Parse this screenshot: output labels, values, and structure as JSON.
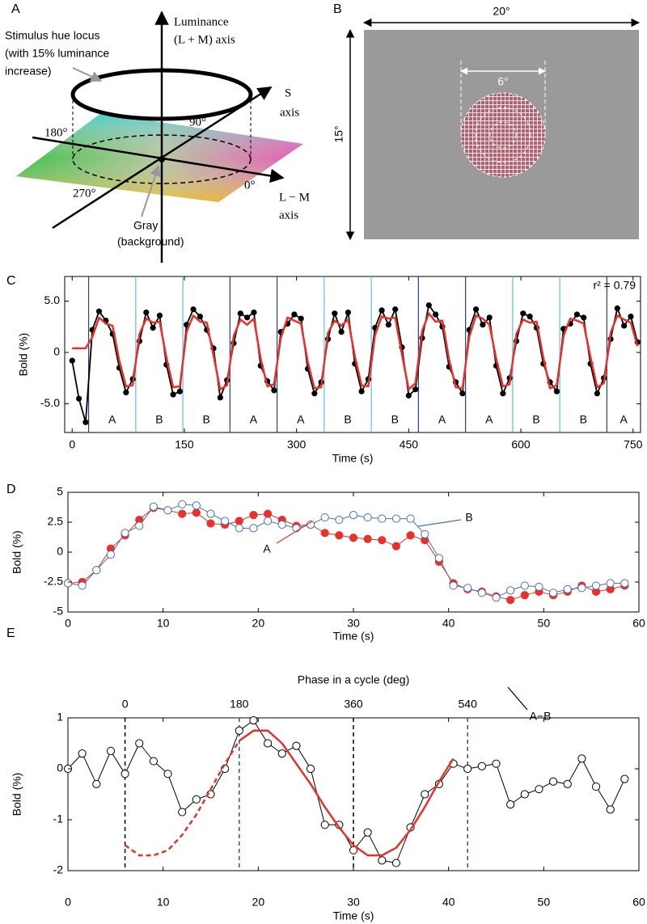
{
  "diagram_a": {
    "label": "A",
    "luminance_axis": [
      "Luminance",
      "(L + M) axis"
    ],
    "hue_locus": [
      "Stimulus hue locus",
      "(with 15% luminance",
      "increase)"
    ],
    "s_axis": [
      "S",
      "axis"
    ],
    "angles": [
      "180°",
      "90°",
      "270°",
      "0°"
    ],
    "lm_axis": [
      "L − M",
      "axis"
    ],
    "gray": [
      "Gray",
      "(background)"
    ]
  },
  "diagram_b": {
    "label": "B",
    "width": "20°",
    "height": "15°",
    "patch": "6°"
  },
  "chart_data": [
    {
      "type": "line",
      "label": "C",
      "xlabel": "Time (s)",
      "ylabel": "Bold (%)",
      "annotation": "r² = 0.79",
      "xlim": [
        -10,
        760
      ],
      "xticks": [
        0,
        150,
        300,
        450,
        600,
        750
      ],
      "ylim": [
        -7.8,
        7.4
      ],
      "yticks": [
        {
          "value": -5,
          "label": "-5.0"
        },
        0,
        {
          "value": 5,
          "label": "5.0"
        }
      ],
      "x": [
        0,
        9,
        18,
        27,
        36,
        45,
        54,
        63,
        72,
        81,
        90,
        99,
        108,
        117,
        126,
        135,
        144,
        153,
        162,
        171,
        180,
        189,
        198,
        207,
        216,
        225,
        234,
        243,
        252,
        261,
        270,
        279,
        288,
        297,
        306,
        315,
        324,
        333,
        342,
        351,
        360,
        369,
        378,
        387,
        396,
        405,
        414,
        423,
        432,
        441,
        450,
        459,
        468,
        477,
        486,
        495,
        504,
        513,
        522,
        531,
        540,
        549,
        558,
        567,
        576,
        585,
        594,
        603,
        612,
        621,
        630,
        639,
        648,
        657,
        666,
        675,
        684,
        693,
        702,
        711,
        720,
        729,
        738,
        747,
        756
      ],
      "series": [
        {
          "color": "#000000",
          "marker": "dot",
          "values": [
            -0.8,
            -4.5,
            -6.8,
            2.2,
            4.0,
            3.1,
            1.8,
            -1.5,
            -3.9,
            -2.6,
            1.1,
            3.9,
            2.4,
            3.6,
            -1.2,
            -4.1,
            -3.8,
            2.7,
            4.2,
            3.5,
            2.2,
            0.4,
            -4.4,
            -2.7,
            0.9,
            3.8,
            3.4,
            3.9,
            -1.3,
            -2.8,
            -3.7,
            2.0,
            2.8,
            3.7,
            3.3,
            -1.6,
            -4.0,
            -2.9,
            1.3,
            3.8,
            2.0,
            3.9,
            -1.1,
            -3.8,
            -2.6,
            2.4,
            4.1,
            2.7,
            4.2,
            0.5,
            -4.2,
            -3.6,
            1.4,
            4.6,
            3.7,
            2.5,
            -1.4,
            -2.9,
            -4.0,
            2.2,
            4.2,
            2.7,
            3.4,
            -1.3,
            -4.0,
            -2.5,
            1.1,
            3.8,
            3.5,
            2.4,
            -1.1,
            -2.9,
            -3.8,
            2.3,
            2.8,
            3.7,
            3.4,
            -1.1,
            -4.0,
            -2.5,
            1.3,
            4.3,
            2.6,
            3.5,
            1.0
          ]
        },
        {
          "color": "#e8312a",
          "marker": "none",
          "values": [
            0.4,
            0.4,
            0.4,
            1.5,
            3.4,
            2.8,
            2.6,
            -0.8,
            -3.3,
            -3.2,
            1.8,
            3.3,
            2.9,
            3.0,
            -0.5,
            -3.4,
            -3.3,
            2.0,
            3.6,
            3.0,
            2.9,
            -0.3,
            -3.6,
            -3.2,
            1.6,
            3.2,
            2.7,
            3.3,
            -0.6,
            -3.3,
            -3.1,
            1.4,
            3.4,
            3.1,
            2.8,
            -0.9,
            -3.5,
            -3.4,
            1.9,
            3.1,
            2.6,
            3.2,
            -0.4,
            -3.2,
            -3.3,
            1.7,
            3.5,
            3.3,
            3.4,
            -0.2,
            -3.6,
            -3.0,
            2.1,
            3.8,
            3.0,
            3.1,
            -0.7,
            -3.4,
            -3.5,
            1.5,
            3.6,
            3.3,
            2.7,
            -0.6,
            -3.3,
            -3.1,
            1.8,
            3.2,
            2.9,
            3.0,
            -0.5,
            -3.5,
            -3.2,
            1.6,
            3.3,
            3.1,
            2.8,
            -0.4,
            -3.4,
            -3.0,
            1.9,
            3.6,
            3.2,
            2.9,
            0.6
          ]
        }
      ],
      "blocks": {
        "labels": [
          "A",
          "B",
          "B",
          "A",
          "A",
          "B",
          "B",
          "A",
          "A",
          "B",
          "B",
          "A"
        ],
        "starts": [
          22,
          85,
          148,
          211,
          274,
          337,
          400,
          463,
          526,
          589,
          652,
          715
        ],
        "colors": [
          "#2b3f8c",
          "#5bbfe8",
          "#5bbfe8",
          "#2b3f8c",
          "#2b3f8c",
          "#5bbfe8",
          "#5bbfe8",
          "#2b3f8c",
          "#2b3f8c",
          "#5bbfe8",
          "#5bbfe8",
          "#2b3f8c"
        ]
      }
    },
    {
      "type": "line",
      "label": "D",
      "xlabel": "Time (s)",
      "ylabel": "Bold (%)",
      "xlim": [
        0,
        60
      ],
      "xticks": [
        0,
        10,
        20,
        30,
        40,
        50,
        60
      ],
      "ylim": [
        -5,
        5
      ],
      "yticks": [
        -5,
        -2.5,
        0,
        2.5,
        5
      ],
      "x": [
        0,
        1.5,
        3,
        4.5,
        6,
        7.5,
        9,
        10.5,
        12,
        13.5,
        15,
        16.5,
        18,
        19.5,
        21,
        22.5,
        24,
        25.5,
        27,
        28.5,
        30,
        31.5,
        33,
        34.5,
        36,
        37.5,
        39,
        40.5,
        42,
        43.5,
        45,
        46.5,
        48,
        49.5,
        51,
        52.5,
        54,
        55.5,
        57,
        58.5
      ],
      "series": [
        {
          "name": "A",
          "color": "#e8312a",
          "marker": "filled",
          "values": [
            -2.6,
            -2.5,
            -1.5,
            0.3,
            1.4,
            2.7,
            3.7,
            3.5,
            3.2,
            3.3,
            2.4,
            2.3,
            2.6,
            3.1,
            3.2,
            2.7,
            2.2,
            2.3,
            1.6,
            1.4,
            1.2,
            1.1,
            1.0,
            0.5,
            1.4,
            1.0,
            -0.8,
            -2.6,
            -3.1,
            -3.3,
            -3.7,
            -4.0,
            -3.6,
            -3.3,
            -3.6,
            -3.3,
            -2.8,
            -3.3,
            -3.1,
            -2.8
          ]
        },
        {
          "name": "B",
          "color": "#4a6fb5",
          "marker": "open",
          "values": [
            -2.6,
            -2.8,
            -1.5,
            -0.2,
            1.6,
            2.2,
            3.8,
            3.5,
            4.0,
            3.9,
            3.2,
            2.6,
            2.0,
            2.0,
            2.6,
            2.3,
            2.0,
            2.3,
            2.9,
            2.7,
            3.1,
            2.9,
            2.8,
            2.8,
            2.8,
            1.5,
            -0.5,
            -2.8,
            -3.0,
            -3.4,
            -3.8,
            -3.2,
            -2.8,
            -2.9,
            -3.4,
            -3.1,
            -3.0,
            -2.8,
            -2.6,
            -2.6
          ]
        }
      ]
    },
    {
      "type": "line",
      "label": "E",
      "xlabel": "Time (s)",
      "ylabel": "Bold (%)",
      "xlim": [
        0,
        60
      ],
      "xticks": [
        0,
        10,
        20,
        30,
        40,
        50,
        60
      ],
      "ylim": [
        -2,
        1
      ],
      "yticks": [
        -2,
        -1,
        0,
        1
      ],
      "top_axis": {
        "label": "Phase in a cycle (deg)",
        "ticks": [
          {
            "value": 6,
            "label": "0"
          },
          {
            "value": 18,
            "label": "180"
          },
          {
            "value": 30,
            "label": "360"
          },
          {
            "value": 42,
            "label": "540"
          }
        ],
        "line_colors": [
          "#000000",
          "#2b4fb0",
          "#000000",
          "#2b4fb0"
        ]
      },
      "x": [
        0,
        1.5,
        3,
        4.5,
        6,
        7.5,
        9,
        10.5,
        12,
        13.5,
        15,
        16.5,
        18,
        19.5,
        21,
        22.5,
        24,
        25.5,
        27,
        28.5,
        30,
        31.5,
        33,
        34.5,
        36,
        37.5,
        39,
        40.5,
        42,
        43.5,
        45,
        46.5,
        48,
        49.5,
        51,
        52.5,
        54,
        55.5,
        57,
        58.5
      ],
      "series": [
        {
          "name": "A−B",
          "color": "#000000",
          "marker": "open",
          "values": [
            0.0,
            0.3,
            -0.3,
            0.35,
            -0.1,
            0.5,
            0.15,
            -0.1,
            -0.85,
            -0.6,
            -0.5,
            0.0,
            0.75,
            0.95,
            0.5,
            0.3,
            0.45,
            0.0,
            -1.1,
            -1.1,
            -1.6,
            -1.25,
            -1.8,
            -1.85,
            -1.15,
            -0.5,
            -0.3,
            0.1,
            0.0,
            0.05,
            0.1,
            -0.7,
            -0.5,
            -0.4,
            -0.25,
            -0.3,
            0.2,
            -0.35,
            -0.8,
            -0.2
          ]
        },
        {
          "color": "#e8312a",
          "marker": "none",
          "dash": true,
          "x": [
            6,
            7.5,
            9,
            10.5,
            12,
            13.5,
            15,
            16.5,
            18
          ],
          "values": [
            -1.5,
            -1.7,
            -1.7,
            -1.6,
            -1.3,
            -0.9,
            -0.4,
            0.1,
            0.55
          ]
        },
        {
          "color": "#e8312a",
          "marker": "none",
          "x": [
            18,
            19.5,
            21,
            22.5,
            24,
            25.5,
            27,
            28.5,
            30,
            31.5,
            33,
            34.5,
            36,
            37.5,
            39,
            40.5
          ],
          "values": [
            0.55,
            0.75,
            0.75,
            0.5,
            0.1,
            -0.3,
            -0.75,
            -1.15,
            -1.5,
            -1.7,
            -1.7,
            -1.55,
            -1.2,
            -0.75,
            -0.25,
            0.2
          ]
        }
      ]
    }
  ]
}
